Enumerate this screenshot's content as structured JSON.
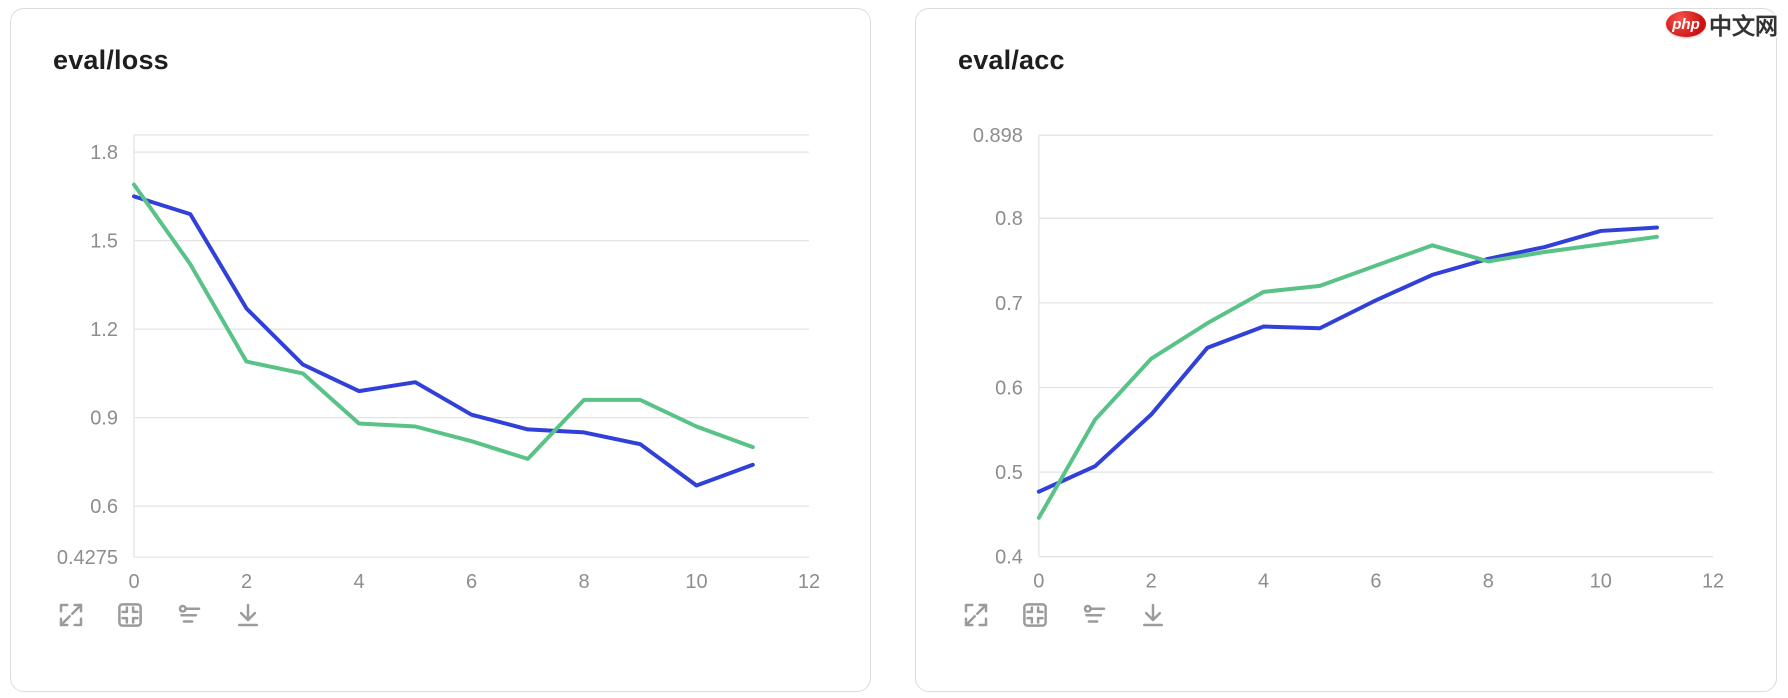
{
  "watermark": {
    "badge": "php",
    "text": "中文网",
    "badge_color": "#cc1111"
  },
  "panels": [
    {
      "title": "eval/loss",
      "toolbar": [
        "expand-icon",
        "fit-frame-icon",
        "filter-lines-icon",
        "download-icon"
      ]
    },
    {
      "title": "eval/acc",
      "toolbar": [
        "expand-icon",
        "fit-frame-icon",
        "filter-lines-icon",
        "download-icon"
      ]
    }
  ],
  "colors": {
    "run_blue": "#3040d8",
    "run_green": "#58c287",
    "grid": "#e3e3e3",
    "tick_label": "#8d8d8d"
  },
  "chart_data": [
    {
      "type": "line",
      "title": "eval/loss",
      "x": [
        0,
        1,
        2,
        3,
        4,
        5,
        6,
        7,
        8,
        9,
        10,
        11
      ],
      "series": [
        {
          "name": "run-blue",
          "color": "#3040d8",
          "values": [
            1.65,
            1.59,
            1.27,
            1.08,
            0.99,
            1.02,
            0.91,
            0.86,
            0.85,
            0.81,
            0.67,
            0.74
          ]
        },
        {
          "name": "run-green",
          "color": "#58c287",
          "values": [
            1.69,
            1.42,
            1.09,
            1.05,
            0.88,
            0.87,
            0.82,
            0.76,
            0.96,
            0.96,
            0.87,
            0.8
          ]
        }
      ],
      "xlim": [
        0,
        12
      ],
      "xticks": [
        0,
        2,
        4,
        6,
        8,
        10,
        12
      ],
      "ylim": [
        0.4275,
        1.858
      ],
      "yticks": [
        {
          "value": 1.858,
          "label": ""
        },
        {
          "value": 1.8,
          "label": "1.8"
        },
        {
          "value": 1.5,
          "label": "1.5"
        },
        {
          "value": 1.2,
          "label": "1.2"
        },
        {
          "value": 0.9,
          "label": "0.9"
        },
        {
          "value": 0.6,
          "label": "0.6"
        },
        {
          "value": 0.4275,
          "label": "0.4275"
        }
      ],
      "grid": true,
      "legend": "none"
    },
    {
      "type": "line",
      "title": "eval/acc",
      "x": [
        0,
        1,
        2,
        3,
        4,
        5,
        6,
        7,
        8,
        9,
        10,
        11
      ],
      "series": [
        {
          "name": "run-blue",
          "color": "#3040d8",
          "values": [
            0.477,
            0.507,
            0.568,
            0.647,
            0.672,
            0.67,
            0.703,
            0.733,
            0.752,
            0.766,
            0.785,
            0.789
          ]
        },
        {
          "name": "run-green",
          "color": "#58c287",
          "values": [
            0.446,
            0.562,
            0.634,
            0.676,
            0.713,
            0.72,
            0.744,
            0.768,
            0.749,
            0.76,
            0.769,
            0.778
          ]
        }
      ],
      "xlim": [
        0,
        12
      ],
      "xticks": [
        0,
        2,
        4,
        6,
        8,
        10,
        12
      ],
      "ylim": [
        0.4,
        0.898
      ],
      "yticks": [
        {
          "value": 0.898,
          "label": "0.898"
        },
        {
          "value": 0.8,
          "label": "0.8"
        },
        {
          "value": 0.7,
          "label": "0.7"
        },
        {
          "value": 0.6,
          "label": "0.6"
        },
        {
          "value": 0.5,
          "label": "0.5"
        },
        {
          "value": 0.4,
          "label": "0.4"
        }
      ],
      "grid": true,
      "legend": "none"
    }
  ]
}
